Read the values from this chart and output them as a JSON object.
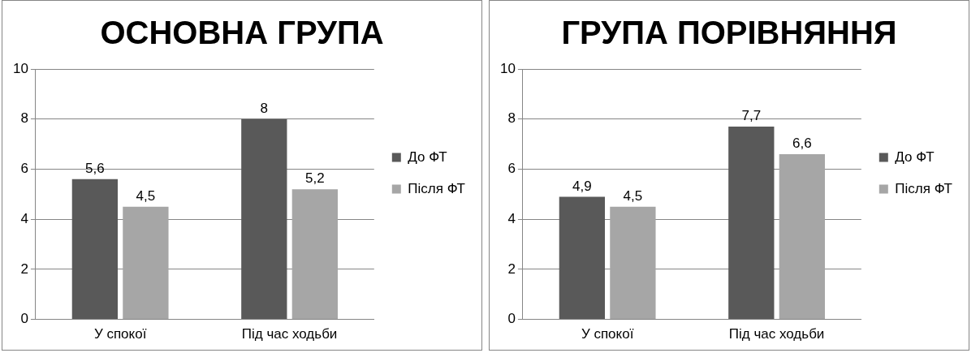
{
  "chart_data": [
    {
      "type": "bar",
      "title": "ОСНОВНА ГРУПА",
      "categories": [
        "У спокої",
        "Під час ходьби"
      ],
      "ylim": [
        0,
        10
      ],
      "yticks": [
        0,
        2,
        4,
        6,
        8,
        10
      ],
      "grid": "y",
      "legend": "right",
      "series": [
        {
          "name": "До ФТ",
          "color": "#595959",
          "values": [
            5.6,
            8
          ],
          "value_labels": [
            "5,6",
            "8"
          ]
        },
        {
          "name": "Після ФТ",
          "color": "#a6a6a6",
          "values": [
            4.5,
            5.2
          ],
          "value_labels": [
            "4,5",
            "5,2"
          ]
        }
      ]
    },
    {
      "type": "bar",
      "title": "ГРУПА ПОРІВНЯННЯ",
      "categories": [
        "У спокої",
        "Під час ходьби"
      ],
      "ylim": [
        0,
        10
      ],
      "yticks": [
        0,
        2,
        4,
        6,
        8,
        10
      ],
      "grid": "y",
      "legend": "right",
      "series": [
        {
          "name": "До ФТ",
          "color": "#595959",
          "values": [
            4.9,
            7.7
          ],
          "value_labels": [
            "4,9",
            "7,7"
          ]
        },
        {
          "name": "Після ФТ",
          "color": "#a6a6a6",
          "values": [
            4.5,
            6.6
          ],
          "value_labels": [
            "4,5",
            "6,6"
          ]
        }
      ]
    }
  ]
}
